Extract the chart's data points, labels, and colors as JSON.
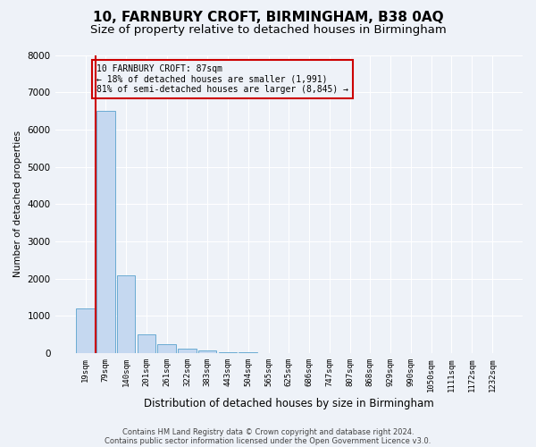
{
  "title1": "10, FARNBURY CROFT, BIRMINGHAM, B38 0AQ",
  "title2": "Size of property relative to detached houses in Birmingham",
  "xlabel": "Distribution of detached houses by size in Birmingham",
  "ylabel": "Number of detached properties",
  "categories": [
    "19sqm",
    "79sqm",
    "140sqm",
    "201sqm",
    "261sqm",
    "322sqm",
    "383sqm",
    "443sqm",
    "504sqm",
    "565sqm",
    "625sqm",
    "686sqm",
    "747sqm",
    "807sqm",
    "868sqm",
    "929sqm",
    "990sqm",
    "1050sqm",
    "1111sqm",
    "1172sqm",
    "1232sqm"
  ],
  "values": [
    1200,
    6500,
    2100,
    500,
    230,
    120,
    70,
    30,
    15,
    5,
    2,
    1,
    0,
    0,
    0,
    0,
    0,
    0,
    0,
    0,
    0
  ],
  "bar_color": "#c5d8f0",
  "bar_edge_color": "#6aabd2",
  "vline_color": "#cc0000",
  "annotation_text": "10 FARNBURY CROFT: 87sqm\n← 18% of detached houses are smaller (1,991)\n81% of semi-detached houses are larger (8,845) →",
  "annotation_box_color": "#cc0000",
  "ylim": [
    0,
    8000
  ],
  "yticks": [
    0,
    1000,
    2000,
    3000,
    4000,
    5000,
    6000,
    7000,
    8000
  ],
  "footer1": "Contains HM Land Registry data © Crown copyright and database right 2024.",
  "footer2": "Contains public sector information licensed under the Open Government Licence v3.0.",
  "bg_color": "#eef2f8",
  "grid_color": "#ffffff",
  "title1_fontsize": 11,
  "title2_fontsize": 9.5
}
